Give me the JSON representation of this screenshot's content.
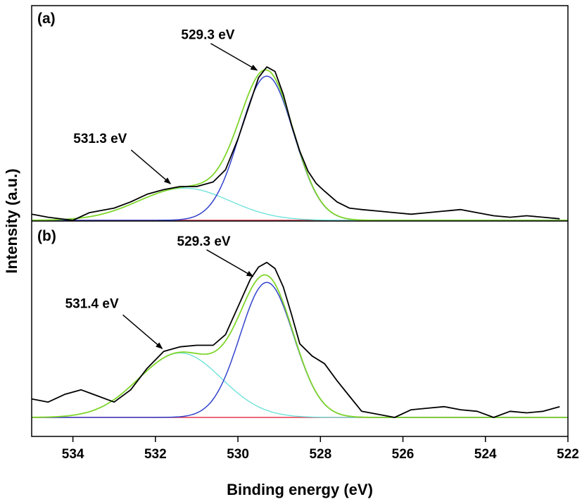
{
  "chart_data": {
    "type": "line",
    "xlabel": "Binding energy (eV)",
    "ylabel": "Intensity (a.u.)",
    "xlim": [
      535,
      522
    ],
    "x_reversed": true,
    "x_ticks": [
      534,
      532,
      530,
      528,
      526,
      524,
      522
    ],
    "y_ticks_shown": false,
    "grid": false,
    "legend": "none",
    "colors": {
      "experimental": "#000000",
      "envelope": "#7fd62a",
      "peak_low_be": "#3344cc",
      "peak_high_be": "#66e0d8",
      "baseline": "#e8384f"
    },
    "panels": [
      {
        "label": "(a)",
        "ylim": [
          0,
          1.0
        ],
        "baseline": 0,
        "peaks": [
          {
            "center": 529.3,
            "height": 0.94,
            "sigma": 0.65,
            "label": "529.3 eV"
          },
          {
            "center": 531.3,
            "height": 0.21,
            "sigma": 1.1,
            "label": "531.3 eV"
          }
        ],
        "experimental": {
          "x": [
            535.0,
            534.6,
            534.0,
            533.6,
            533.0,
            532.6,
            532.2,
            531.8,
            531.4,
            531.0,
            530.6,
            530.3,
            530.0,
            529.7,
            529.5,
            529.3,
            529.1,
            528.9,
            528.7,
            528.5,
            528.3,
            528.1,
            527.9,
            527.6,
            527.3,
            527.0,
            526.6,
            526.2,
            525.8,
            525.4,
            525.0,
            524.6,
            524.2,
            523.8,
            523.4,
            523.0,
            522.6,
            522.2
          ],
          "y": [
            0.04,
            0.02,
            0.0,
            0.05,
            0.08,
            0.12,
            0.17,
            0.2,
            0.22,
            0.22,
            0.25,
            0.33,
            0.53,
            0.77,
            0.93,
            1.0,
            0.97,
            0.82,
            0.62,
            0.45,
            0.32,
            0.24,
            0.19,
            0.12,
            0.08,
            0.07,
            0.06,
            0.05,
            0.04,
            0.05,
            0.06,
            0.07,
            0.05,
            0.03,
            0.02,
            0.03,
            0.02,
            0.01
          ]
        },
        "annotations": [
          {
            "text": "529.3 eV",
            "x": 529.5,
            "y": 0.96
          },
          {
            "text": "531.3 eV",
            "x": 531.6,
            "y": 0.22
          }
        ]
      },
      {
        "label": "(b)",
        "ylim": [
          0,
          1.0
        ],
        "baseline": 0,
        "peaks": [
          {
            "center": 529.3,
            "height": 0.88,
            "sigma": 0.65,
            "label": "529.3 eV"
          },
          {
            "center": 531.4,
            "height": 0.42,
            "sigma": 1.0,
            "label": "531.4 eV"
          }
        ],
        "experimental": {
          "x": [
            535.0,
            534.6,
            534.2,
            533.8,
            533.4,
            533.0,
            532.6,
            532.2,
            531.8,
            531.4,
            531.0,
            530.6,
            530.3,
            530.0,
            529.7,
            529.5,
            529.3,
            529.1,
            528.9,
            528.7,
            528.5,
            528.2,
            527.9,
            527.6,
            527.3,
            527.0,
            526.6,
            526.2,
            525.8,
            525.4,
            525.0,
            524.6,
            524.2,
            523.8,
            523.4,
            523.0,
            522.6,
            522.2
          ],
          "y": [
            0.12,
            0.1,
            0.15,
            0.18,
            0.14,
            0.1,
            0.18,
            0.32,
            0.43,
            0.46,
            0.47,
            0.47,
            0.54,
            0.72,
            0.9,
            0.98,
            1.01,
            0.97,
            0.85,
            0.67,
            0.48,
            0.4,
            0.35,
            0.24,
            0.14,
            0.04,
            0.02,
            0.0,
            0.05,
            0.06,
            0.07,
            0.05,
            0.04,
            0.0,
            0.04,
            0.03,
            0.04,
            0.07
          ]
        },
        "annotations": [
          {
            "text": "529.3 eV",
            "x": 529.6,
            "y": 0.9
          },
          {
            "text": "531.4 eV",
            "x": 531.8,
            "y": 0.43
          }
        ]
      }
    ]
  }
}
